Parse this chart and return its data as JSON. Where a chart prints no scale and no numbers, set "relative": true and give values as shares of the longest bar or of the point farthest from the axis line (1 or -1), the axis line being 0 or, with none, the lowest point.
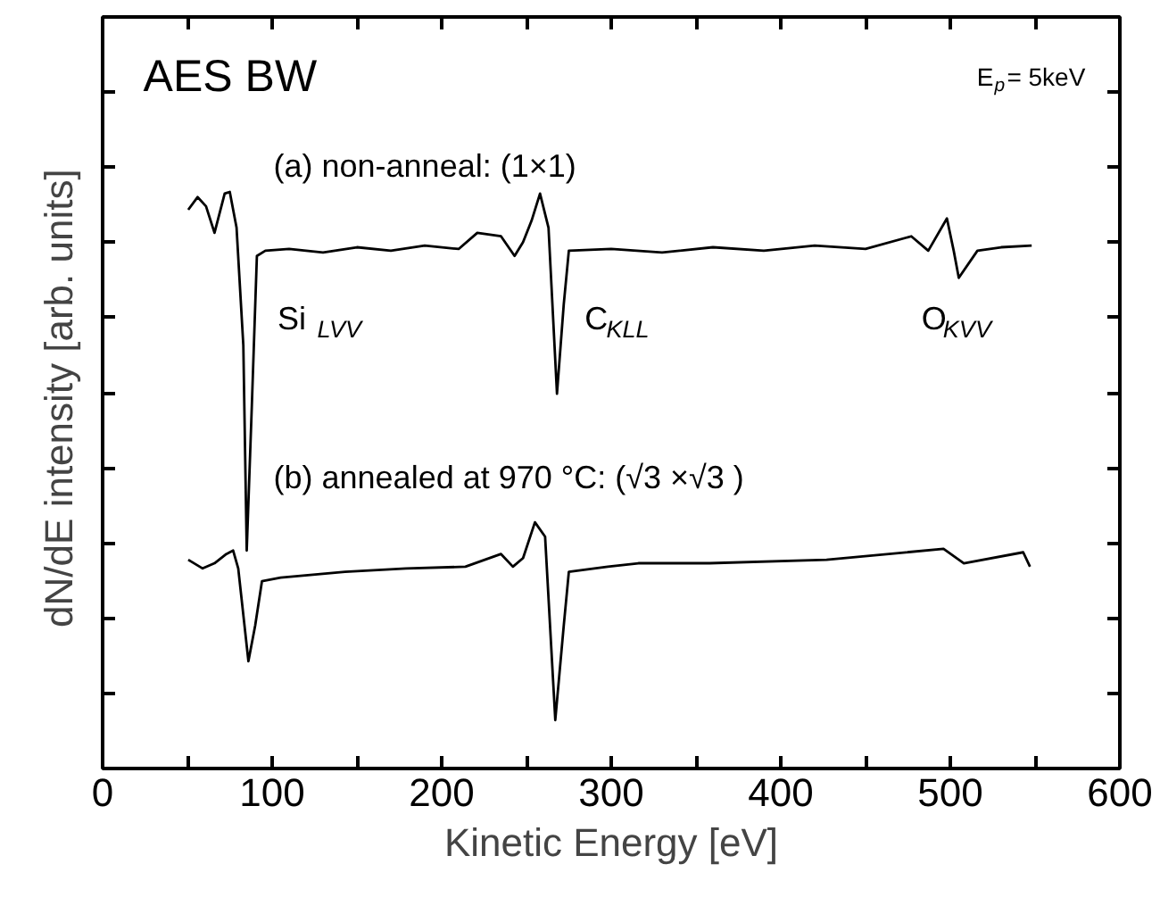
{
  "chart_data": {
    "type": "line",
    "relative": true,
    "xlabel": "Kinetic Energy [eV]",
    "ylabel": "dN/dE intensity  [arb. units]",
    "xlim": [
      0,
      600
    ],
    "xticks": [
      0,
      {
        "value": 50,
        "label": null
      },
      100,
      {
        "value": 150,
        "label": null
      },
      200,
      {
        "value": 250,
        "label": null
      },
      300,
      {
        "value": 350,
        "label": null
      },
      400,
      {
        "value": 450,
        "label": null
      },
      500,
      {
        "value": 550,
        "label": null
      },
      600
    ],
    "annotations": [
      "AES  BW",
      "E$_{p}$= 5keV",
      "(a) non-anneal:  (1×1)",
      "(b) annealed at 970 °C:  (√3 ×√3 )",
      "Si$_{LVV}$",
      "C$_{KLL}$",
      "O$_{KVV}$"
    ],
    "series": [
      {
        "color": "#000000",
        "x": [
          50.5,
          56,
          61,
          66,
          72,
          75,
          79,
          83,
          85,
          88,
          91,
          96,
          110,
          130,
          150,
          170,
          190,
          210,
          221,
          235,
          243,
          248,
          253,
          258,
          263,
          268,
          272,
          275,
          300,
          330,
          360,
          390,
          420,
          450,
          477,
          487,
          498,
          502,
          505,
          516,
          530,
          548
        ],
        "values": [
          0.969,
          0.991,
          0.975,
          0.929,
          0.997,
          1.0,
          0.938,
          0.734,
          0.378,
          0.628,
          0.889,
          0.898,
          0.901,
          0.895,
          0.904,
          0.898,
          0.907,
          0.901,
          0.929,
          0.923,
          0.889,
          0.913,
          0.95,
          0.997,
          0.938,
          0.65,
          0.805,
          0.898,
          0.901,
          0.895,
          0.904,
          0.898,
          0.907,
          0.901,
          0.923,
          0.898,
          0.954,
          0.898,
          0.851,
          0.898,
          0.904,
          0.907
        ]
      },
      {
        "color": "#000000",
        "x": [
          50.5,
          59,
          66,
          73,
          77,
          80,
          86,
          90,
          94,
          105,
          143,
          179,
          214,
          235,
          242,
          248,
          255,
          261,
          267,
          272,
          275,
          298,
          316,
          358,
          427,
          496,
          508,
          543,
          547
        ],
        "values": [
          0.362,
          0.347,
          0.356,
          0.372,
          0.378,
          0.347,
          0.186,
          0.248,
          0.325,
          0.331,
          0.341,
          0.347,
          0.35,
          0.372,
          0.35,
          0.365,
          0.427,
          0.402,
          0.084,
          0.248,
          0.341,
          0.35,
          0.356,
          0.356,
          0.362,
          0.381,
          0.356,
          0.375,
          0.35
        ]
      }
    ]
  }
}
